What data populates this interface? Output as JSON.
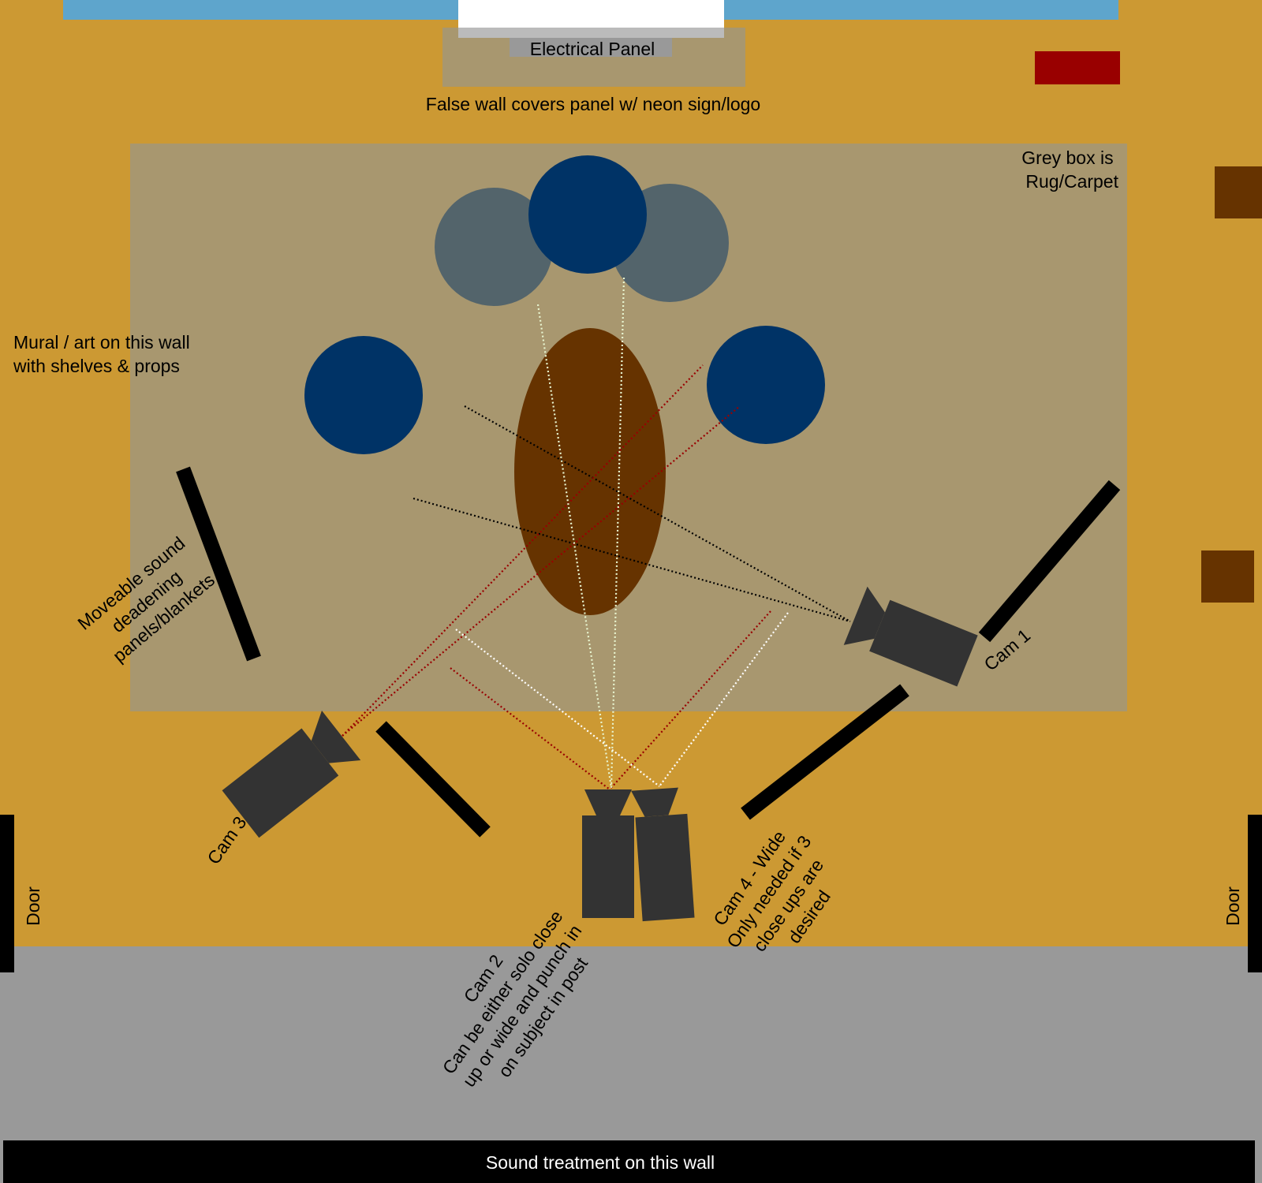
{
  "colors": {
    "floor": "#cc9933",
    "rug": "#a8976f",
    "panel_box": "#a8976f",
    "hallway": "#999999",
    "window": "#5ea5cc",
    "table": "#663300",
    "host_chair": "#003366",
    "guest_chair": "#53646b",
    "camera": "#333333",
    "panel": "#000000",
    "red_light": "#990000",
    "brown_box": "#663300",
    "line_black": "#000000",
    "line_red": "#990000",
    "line_white": "#ffffff",
    "line_pale": "#e8f5d0"
  },
  "labels": {
    "electrical_panel": "Electrical Panel",
    "false_wall": "False wall covers panel w/ neon sign/logo",
    "rug_note_line1": "Grey box is",
    "rug_note_line2": "Rug/Carpet",
    "mural_line1": "Mural / art on this wall",
    "mural_line2": "with shelves & props",
    "panels_line1": "Moveable sound",
    "panels_line2": "deadening",
    "panels_line3": "panels/blankets",
    "cam1": "Cam 1",
    "cam3": "Cam 3",
    "cam2_line1": "Cam 2",
    "cam2_line2": "Can be either solo close",
    "cam2_line3": "up or wide and punch in",
    "cam2_line4": "on subject in post",
    "cam4_line1": "Cam 4 - Wide",
    "cam4_line2": "Only needed if 3",
    "cam4_line3": "close ups are",
    "cam4_line4": "desired",
    "door_left": "Door",
    "door_right": "Door",
    "sound_wall": "Sound treatment on this wall"
  }
}
